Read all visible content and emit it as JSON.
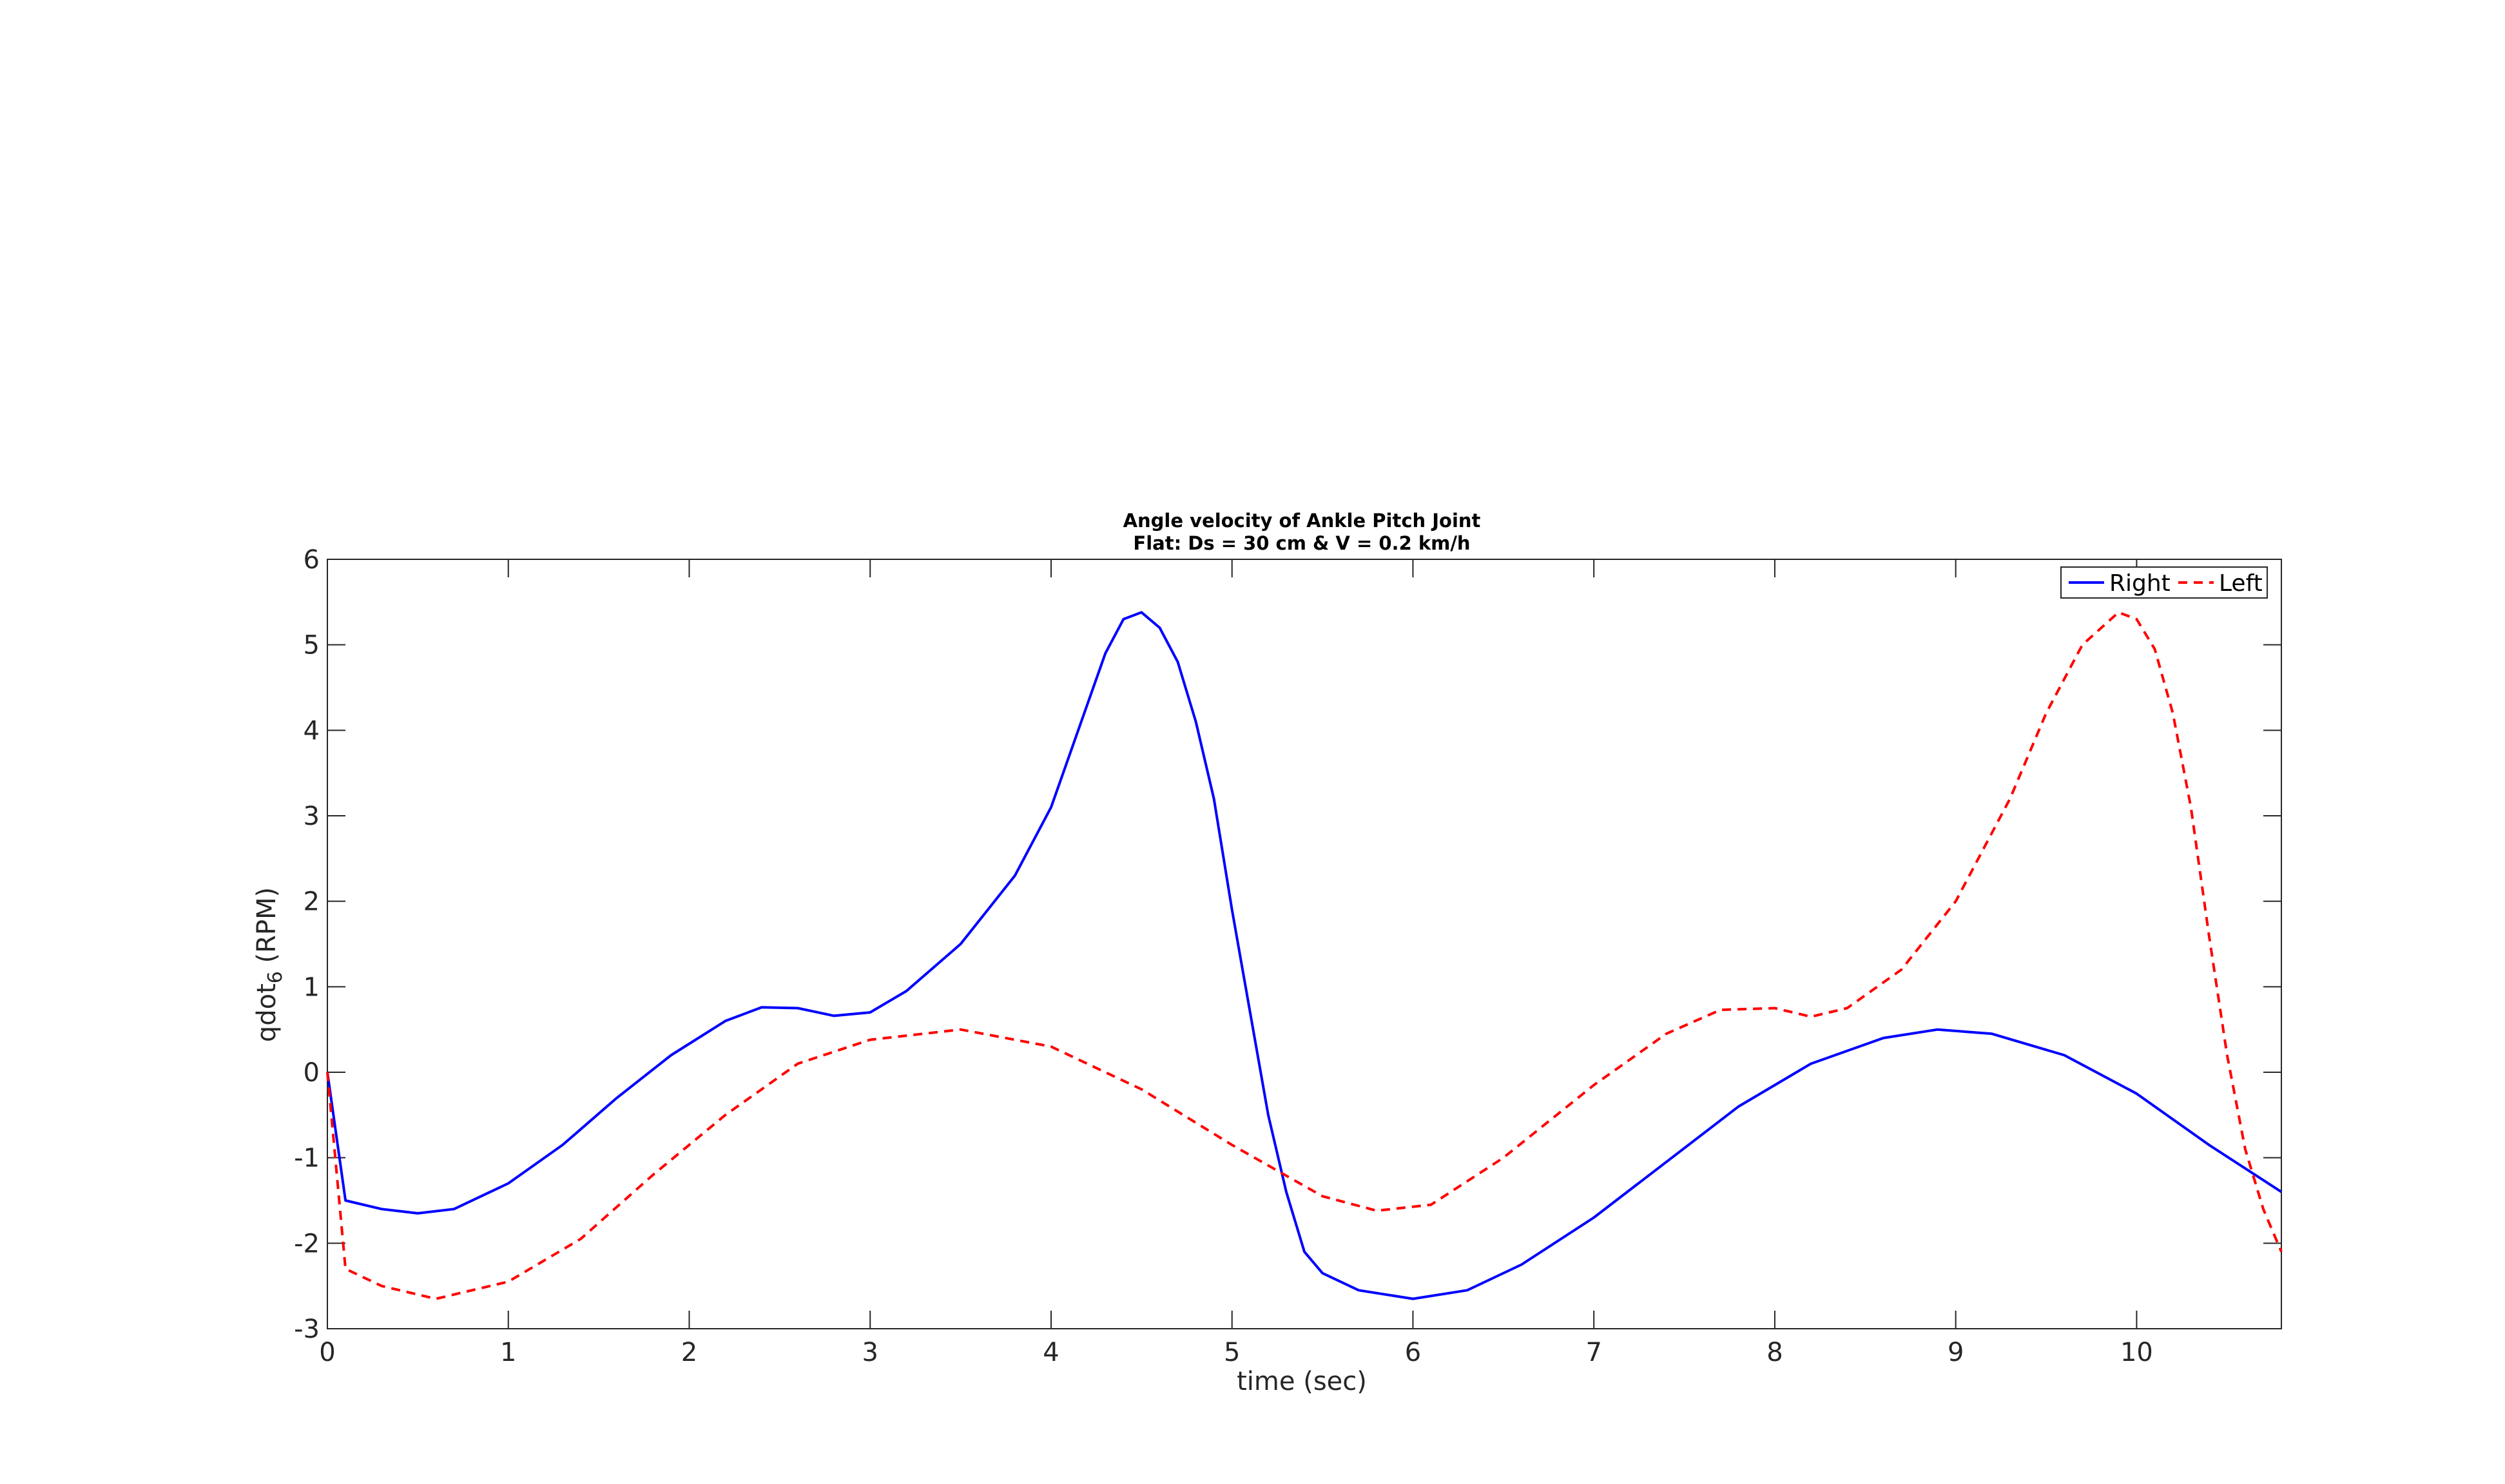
{
  "chart_data": {
    "type": "line",
    "title": "Angle velocity of Ankle Pitch Joint",
    "subtitle": "Flat: Ds = 30 cm & V = 0.2 km/h",
    "xlabel": "time (sec)",
    "ylabel_main": "qdot",
    "ylabel_sub": "6",
    "ylabel_unit": " (RPM)",
    "xlim": [
      0,
      10.8
    ],
    "ylim": [
      -3,
      6
    ],
    "xticks": [
      0,
      1,
      2,
      3,
      4,
      5,
      6,
      7,
      8,
      9,
      10
    ],
    "yticks": [
      -3,
      -2,
      -1,
      0,
      1,
      2,
      3,
      4,
      5,
      6
    ],
    "grid": false,
    "legend_position": "top-right",
    "legend": [
      "Right",
      "Left"
    ],
    "series": [
      {
        "name": "Right",
        "color": "#0000ff",
        "dash": "solid",
        "x": [
          0,
          0.1,
          0.3,
          0.5,
          0.7,
          1.0,
          1.3,
          1.6,
          1.9,
          2.2,
          2.4,
          2.6,
          2.8,
          3.0,
          3.2,
          3.5,
          3.8,
          4.0,
          4.2,
          4.3,
          4.4,
          4.5,
          4.6,
          4.7,
          4.8,
          4.9,
          5.0,
          5.1,
          5.2,
          5.3,
          5.4,
          5.5,
          5.7,
          6.0,
          6.3,
          6.6,
          7.0,
          7.4,
          7.8,
          8.2,
          8.6,
          8.9,
          9.2,
          9.6,
          10.0,
          10.4,
          10.8
        ],
        "y": [
          0,
          -1.5,
          -1.6,
          -1.65,
          -1.6,
          -1.3,
          -0.85,
          -0.3,
          0.2,
          0.6,
          0.76,
          0.75,
          0.66,
          0.7,
          0.95,
          1.5,
          2.3,
          3.1,
          4.3,
          4.9,
          5.3,
          5.38,
          5.2,
          4.8,
          4.1,
          3.2,
          1.9,
          0.7,
          -0.5,
          -1.4,
          -2.1,
          -2.35,
          -2.55,
          -2.65,
          -2.55,
          -2.25,
          -1.7,
          -1.05,
          -0.4,
          0.1,
          0.4,
          0.5,
          0.45,
          0.2,
          -0.25,
          -0.85,
          -1.4
        ]
      },
      {
        "name": "Left",
        "color": "#ff0000",
        "dash": "dashed",
        "x": [
          0,
          0.1,
          0.3,
          0.6,
          1.0,
          1.4,
          1.8,
          2.2,
          2.6,
          3.0,
          3.5,
          4.0,
          4.5,
          5.0,
          5.5,
          5.8,
          6.1,
          6.5,
          7.0,
          7.4,
          7.7,
          8.0,
          8.2,
          8.4,
          8.7,
          9.0,
          9.3,
          9.5,
          9.7,
          9.9,
          10.0,
          10.1,
          10.2,
          10.3,
          10.4,
          10.5,
          10.6,
          10.7,
          10.8
        ],
        "y": [
          0,
          -2.3,
          -2.5,
          -2.65,
          -2.45,
          -1.95,
          -1.2,
          -0.5,
          0.1,
          0.38,
          0.5,
          0.3,
          -0.2,
          -0.85,
          -1.45,
          -1.62,
          -1.55,
          -1.0,
          -0.15,
          0.45,
          0.73,
          0.75,
          0.65,
          0.75,
          1.2,
          2.0,
          3.2,
          4.2,
          5.0,
          5.38,
          5.3,
          4.95,
          4.2,
          3.1,
          1.6,
          0.2,
          -0.9,
          -1.6,
          -2.1
        ]
      }
    ]
  }
}
